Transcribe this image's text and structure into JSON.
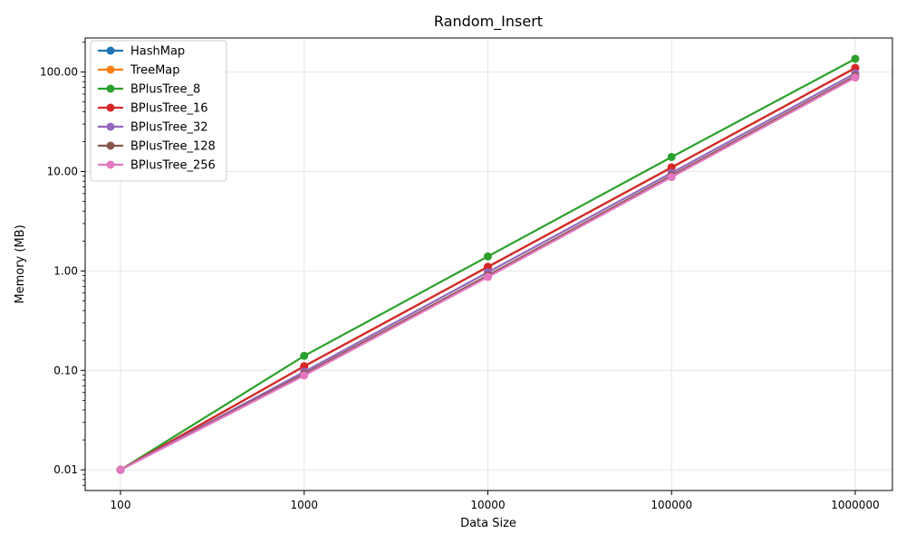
{
  "chart_data": {
    "type": "line",
    "title": "Random_Insert",
    "xlabel": "Data Size",
    "ylabel": "Memory (MB)",
    "x_scale": "log",
    "y_scale": "log",
    "x": [
      100,
      1000,
      10000,
      100000,
      1000000
    ],
    "x_tick_labels": [
      "100",
      "1000",
      "10000",
      "100000",
      "1000000"
    ],
    "y_ticks": [
      0.01,
      0.1,
      1,
      10,
      100
    ],
    "y_tick_labels": [
      "0.01",
      "0.10",
      "1.00",
      "10.00",
      "100.00"
    ],
    "ylim": [
      0.0062,
      220
    ],
    "grid": true,
    "legend_position": "top-left",
    "series": [
      {
        "name": "HashMap",
        "color": "#1f77b4",
        "values": [
          0.01,
          0.11,
          1.1,
          11,
          110
        ]
      },
      {
        "name": "TreeMap",
        "color": "#ff7f0e",
        "values": [
          0.01,
          0.11,
          1.1,
          11,
          110
        ]
      },
      {
        "name": "BPlusTree_8",
        "color": "#2ca02c",
        "values": [
          0.01,
          0.14,
          1.4,
          14,
          136
        ]
      },
      {
        "name": "BPlusTree_16",
        "color": "#d62728",
        "values": [
          0.01,
          0.11,
          1.1,
          11,
          110
        ]
      },
      {
        "name": "BPlusTree_32",
        "color": "#9467bd",
        "values": [
          0.01,
          0.097,
          0.97,
          9.7,
          97
        ]
      },
      {
        "name": "BPlusTree_128",
        "color": "#8c564b",
        "values": [
          0.01,
          0.092,
          0.9,
          9.1,
          91
        ]
      },
      {
        "name": "BPlusTree_256",
        "color": "#e377c2",
        "values": [
          0.01,
          0.089,
          0.87,
          8.8,
          88
        ]
      }
    ]
  }
}
